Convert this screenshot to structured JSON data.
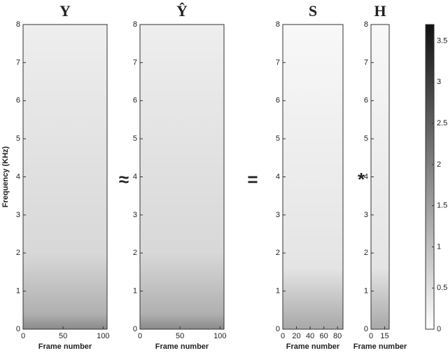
{
  "operators": [
    "≈",
    "=",
    "*"
  ],
  "chart_data": [
    {
      "type": "heatmap",
      "title": "Y",
      "xlabel": "Frame number",
      "ylabel": "Frequency (KHz)",
      "xlim": [
        0,
        105
      ],
      "xticks": [
        0,
        50,
        100
      ],
      "ylim": [
        0,
        8
      ],
      "yticks": [
        0,
        1,
        2,
        3,
        4,
        5,
        6,
        7,
        8
      ]
    },
    {
      "type": "heatmap",
      "title": "Ŷ",
      "xlabel": "Frame number",
      "xlim": [
        0,
        105
      ],
      "xticks": [
        0,
        50,
        100
      ],
      "ylim": [
        0,
        8
      ],
      "yticks": [
        0,
        1,
        2,
        3,
        4,
        5,
        6,
        7,
        8
      ]
    },
    {
      "type": "heatmap",
      "title": "S",
      "xlabel": "Frame number",
      "xlim": [
        0,
        88
      ],
      "xticks": [
        0,
        20,
        40,
        60,
        80
      ],
      "ylim": [
        0,
        8
      ],
      "yticks": [
        0,
        1,
        2,
        3,
        4,
        5,
        6,
        7,
        8
      ]
    },
    {
      "type": "heatmap",
      "title": "H",
      "xlabel": "Frame number",
      "xlim": [
        0,
        20
      ],
      "xticks": [
        0,
        15
      ],
      "ylim": [
        0,
        8
      ],
      "yticks": [
        0,
        1,
        2,
        3,
        4,
        5,
        6,
        7,
        8
      ],
      "colorbar": {
        "lim": [
          0,
          3.7
        ],
        "ticks": [
          0,
          0.5,
          1,
          1.5,
          2,
          2.5,
          3,
          3.5
        ]
      }
    }
  ]
}
